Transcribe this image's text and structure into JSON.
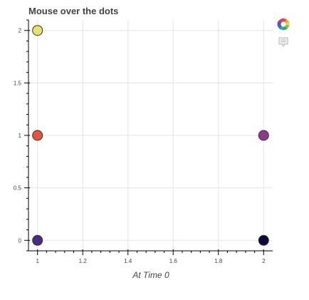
{
  "chart_data": {
    "type": "scatter",
    "title": "Mouse over the dots",
    "xlabel": "At Time 0",
    "ylabel": "",
    "xlim": [
      0.96,
      2.04
    ],
    "ylim": [
      -0.1,
      2.1
    ],
    "x_ticks": [
      1,
      1.2,
      1.4,
      1.6,
      1.8,
      2
    ],
    "x_tick_labels": [
      "1",
      "1.2",
      "1.4",
      "1.6",
      "1.8",
      "2"
    ],
    "y_ticks": [
      0,
      0.5,
      1,
      1.5,
      2
    ],
    "y_tick_labels": [
      "0",
      "0.5",
      "1",
      "1.5",
      "2"
    ],
    "grid": true,
    "points": [
      {
        "x": 1,
        "y": 2,
        "color": "#E6E26A"
      },
      {
        "x": 1,
        "y": 1,
        "color": "#E8533A"
      },
      {
        "x": 1,
        "y": 0,
        "color": "#4B2C83"
      },
      {
        "x": 2,
        "y": 1,
        "color": "#8E3A8C"
      },
      {
        "x": 2,
        "y": 0,
        "color": "#0B0B3B"
      }
    ]
  },
  "toolbar": {
    "logo_icon": "bokeh-logo-icon",
    "hover_icon": "hover-tool-icon"
  }
}
